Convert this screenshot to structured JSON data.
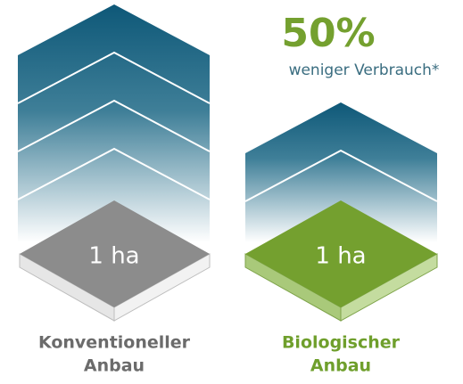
{
  "headline": {
    "value": "50%",
    "caption": "weniger Verbrauch*"
  },
  "columns": [
    {
      "area": "1 ha",
      "label": [
        "Konventioneller",
        "Anbau"
      ]
    },
    {
      "area": "1 ha",
      "label": [
        "Biologischer",
        "Anbau"
      ]
    }
  ]
}
